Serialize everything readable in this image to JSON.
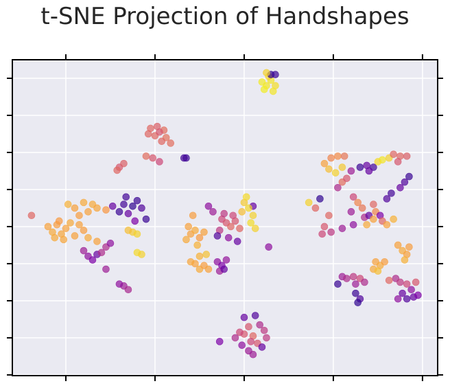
{
  "chart_data": {
    "type": "scatter",
    "title": "t-SNE Projection of Handshapes",
    "xlabel": "",
    "ylabel": "",
    "xlim": [
      -52,
      43.4
    ],
    "ylim": [
      -40.2,
      45
    ],
    "xticks": [
      -40,
      -20,
      0,
      20,
      40
    ],
    "yticks": [
      -40,
      -30,
      -20,
      -10,
      0,
      10,
      20,
      30,
      40
    ],
    "tick_labels_shown": false,
    "grid": true,
    "background": "#eaeaf2",
    "colormap": "plasma",
    "colormap_stops": [
      "#0d0887",
      "#7e03a8",
      "#cc4778",
      "#f89540",
      "#f0f921"
    ],
    "marker_alpha": 0.7,
    "legend": "none",
    "points": [
      [
        5,
        38,
        0.95
      ],
      [
        6,
        39.5,
        0.95
      ],
      [
        4.5,
        37,
        0.97
      ],
      [
        7,
        38,
        0.93
      ],
      [
        5.5,
        40.5,
        0.9
      ],
      [
        4,
        39,
        0.96
      ],
      [
        6.5,
        36.5,
        0.95
      ],
      [
        6,
        41,
        0.08
      ],
      [
        7,
        41,
        0.1
      ],
      [
        5,
        41.5,
        0.9
      ],
      [
        -21,
        26.5,
        0.6
      ],
      [
        -19.5,
        27,
        0.58
      ],
      [
        -18,
        26,
        0.62
      ],
      [
        -20,
        24.5,
        0.6
      ],
      [
        -17.5,
        24,
        0.63
      ],
      [
        -18.5,
        23,
        0.6
      ],
      [
        -16.5,
        22.5,
        0.62
      ],
      [
        -19,
        25.5,
        0.55
      ],
      [
        -21.5,
        25,
        0.6
      ],
      [
        -22,
        19,
        0.62
      ],
      [
        -20.5,
        18.5,
        0.55
      ],
      [
        -19,
        17.5,
        0.5
      ],
      [
        -13,
        18.5,
        0.1
      ],
      [
        -13.5,
        18.5,
        0.12
      ],
      [
        -28,
        16,
        0.55
      ],
      [
        -27,
        17,
        0.58
      ],
      [
        -28.5,
        15.2,
        0.6
      ],
      [
        -47.7,
        3,
        0.6
      ],
      [
        -44,
        0,
        0.78
      ],
      [
        -43,
        -1.5,
        0.8
      ],
      [
        -42,
        0.5,
        0.77
      ],
      [
        -41,
        -2,
        0.79
      ],
      [
        -40,
        -0.5,
        0.78
      ],
      [
        -39,
        1,
        0.8
      ],
      [
        -41.5,
        1.5,
        0.76
      ],
      [
        -38,
        -2.5,
        0.78
      ],
      [
        -42.5,
        -3,
        0.8
      ],
      [
        -37,
        0.5,
        0.78
      ],
      [
        -40.5,
        -3.5,
        0.79
      ],
      [
        -36,
        -1,
        0.77
      ],
      [
        -38,
        5,
        0.78
      ],
      [
        -36,
        6.5,
        0.8
      ],
      [
        -35,
        4,
        0.78
      ],
      [
        -34,
        6,
        0.8
      ],
      [
        -37,
        3,
        0.77
      ],
      [
        -33,
        5,
        0.79
      ],
      [
        -39.5,
        6,
        0.82
      ],
      [
        -35,
        -3,
        0.8
      ],
      [
        -33,
        -4,
        0.78
      ],
      [
        -31,
        4.5,
        0.75
      ],
      [
        -27,
        6,
        0.12
      ],
      [
        -25,
        5.5,
        0.08
      ],
      [
        -24,
        7,
        0.1
      ],
      [
        -23,
        5,
        0.15
      ],
      [
        -26,
        3.5,
        0.2
      ],
      [
        -28,
        4,
        0.1
      ],
      [
        -22,
        2,
        0.1
      ],
      [
        -29.5,
        5.5,
        0.2
      ],
      [
        -26.5,
        8,
        0.12
      ],
      [
        -24.5,
        1.5,
        0.25
      ],
      [
        -35,
        -8,
        0.3
      ],
      [
        -34,
        -9,
        0.25
      ],
      [
        -33,
        -7.5,
        0.2
      ],
      [
        -36,
        -6.5,
        0.35
      ],
      [
        -32,
        -7,
        0.4
      ],
      [
        -31,
        -5.5,
        0.4
      ],
      [
        -30,
        -4.5,
        0.3
      ],
      [
        -27,
        -16,
        0.35
      ],
      [
        -28,
        -15.5,
        0.3
      ],
      [
        -26,
        -17,
        0.38
      ],
      [
        -31,
        -11.5,
        0.35
      ],
      [
        -25,
        -1.5,
        0.88
      ],
      [
        -24,
        -2,
        0.9
      ],
      [
        -26,
        -1,
        0.85
      ],
      [
        -24,
        -7,
        0.92
      ],
      [
        -23,
        -7.5,
        0.9
      ],
      [
        -12,
        -2,
        0.78
      ],
      [
        -11,
        -1,
        0.8
      ],
      [
        -10,
        -3,
        0.76
      ],
      [
        -12.5,
        0,
        0.78
      ],
      [
        -13,
        -3.5,
        0.8
      ],
      [
        -11.5,
        3,
        0.77
      ],
      [
        -9,
        -1.5,
        0.78
      ],
      [
        -10.5,
        -5,
        0.82
      ],
      [
        -11,
        -10,
        0.78
      ],
      [
        -10,
        -11.5,
        0.8
      ],
      [
        -9,
        -10.5,
        0.77
      ],
      [
        -12,
        -9.5,
        0.79
      ],
      [
        -8,
        -11.5,
        0.78
      ],
      [
        -10,
        -8,
        0.82
      ],
      [
        -8.5,
        -7.5,
        0.86
      ],
      [
        -8,
        5.5,
        0.3
      ],
      [
        -7,
        4,
        0.35
      ],
      [
        -5,
        2,
        0.5
      ],
      [
        -4,
        1,
        0.55
      ],
      [
        -3,
        0,
        0.6
      ],
      [
        -2,
        1.5,
        0.55
      ],
      [
        -1,
        -0.5,
        0.6
      ],
      [
        -5.5,
        -1,
        0.45
      ],
      [
        -3.5,
        -3,
        0.3
      ],
      [
        -1.5,
        -4,
        0.2
      ],
      [
        -6,
        -2.5,
        0.15
      ],
      [
        -2.5,
        3,
        0.5
      ],
      [
        -4.5,
        3.5,
        0.45
      ],
      [
        2,
        5.5,
        0.2
      ],
      [
        0,
        6.5,
        0.88
      ],
      [
        1,
        5,
        0.92
      ],
      [
        2,
        3,
        0.9
      ],
      [
        1.5,
        1,
        0.93
      ],
      [
        -0.5,
        4,
        0.85
      ],
      [
        2.5,
        -0.5,
        0.9
      ],
      [
        0.5,
        8,
        0.92
      ],
      [
        -6,
        -9.5,
        0.3
      ],
      [
        -5,
        -10.5,
        0.25
      ],
      [
        -4,
        -9,
        0.32
      ],
      [
        -5.5,
        -12,
        0.35
      ],
      [
        -4.5,
        -11.5,
        0.2
      ],
      [
        5.5,
        -5.5,
        0.3
      ],
      [
        0,
        -24.5,
        0.2
      ],
      [
        2.5,
        -24,
        0.15
      ],
      [
        3.5,
        -26.5,
        0.4
      ],
      [
        1,
        -27,
        0.55
      ],
      [
        0,
        -29,
        0.55
      ],
      [
        2,
        -29.5,
        0.6
      ],
      [
        1.5,
        -31,
        0.5
      ],
      [
        3,
        -31.5,
        0.55
      ],
      [
        4.5,
        -28,
        0.45
      ],
      [
        -1,
        -28.5,
        0.5
      ],
      [
        -2,
        -30,
        0.4
      ],
      [
        1,
        -33.5,
        0.35
      ],
      [
        2,
        -34.5,
        0.35
      ],
      [
        4,
        -32.5,
        0.2
      ],
      [
        -0.5,
        -32,
        0.3
      ],
      [
        5,
        -30,
        0.45
      ],
      [
        -5.5,
        -31,
        0.25
      ],
      [
        18,
        17,
        0.78
      ],
      [
        19.5,
        18.5,
        0.7
      ],
      [
        21,
        19,
        0.72
      ],
      [
        22.5,
        19,
        0.65
      ],
      [
        19,
        15.5,
        0.85
      ],
      [
        20.5,
        14.5,
        0.9
      ],
      [
        22,
        16,
        0.88
      ],
      [
        24,
        15,
        0.35
      ],
      [
        26,
        16,
        0.1
      ],
      [
        27.5,
        16.5,
        0.2
      ],
      [
        29,
        16,
        0.12
      ],
      [
        28,
        15,
        0.2
      ],
      [
        30,
        17.5,
        0.92
      ],
      [
        31,
        18,
        0.95
      ],
      [
        32.5,
        18.5,
        0.9
      ],
      [
        33.5,
        19.5,
        0.6
      ],
      [
        35,
        19,
        0.6
      ],
      [
        36.5,
        19,
        0.58
      ],
      [
        34.5,
        17.5,
        0.55
      ],
      [
        36,
        12,
        0.15
      ],
      [
        35,
        10.5,
        0.2
      ],
      [
        33,
        9,
        0.12
      ],
      [
        32,
        7.5,
        0.15
      ],
      [
        37,
        13.5,
        0.1
      ],
      [
        22,
        12,
        0.62
      ],
      [
        23,
        13,
        0.55
      ],
      [
        21,
        10.5,
        0.4
      ],
      [
        24.5,
        8,
        0.5
      ],
      [
        25.5,
        6.5,
        0.7
      ],
      [
        26.5,
        5,
        0.65
      ],
      [
        24,
        4,
        0.35
      ],
      [
        27,
        2.5,
        0.4
      ],
      [
        29,
        6,
        0.6
      ],
      [
        29.5,
        4,
        0.7
      ],
      [
        28,
        3,
        0.2
      ],
      [
        30.5,
        3,
        0.25
      ],
      [
        31,
        1.5,
        0.6
      ],
      [
        29,
        2,
        0.78
      ],
      [
        27.5,
        0.5,
        0.8
      ],
      [
        32,
        0.5,
        0.78
      ],
      [
        33.5,
        2,
        0.82
      ],
      [
        24.5,
        0.5,
        0.3
      ],
      [
        22,
        -0.5,
        0.35
      ],
      [
        19,
        3,
        0.6
      ],
      [
        18,
        0,
        0.55
      ],
      [
        17.5,
        -2,
        0.5
      ],
      [
        19.5,
        -1.5,
        0.45
      ],
      [
        16,
        5,
        0.6
      ],
      [
        14.5,
        6.5,
        0.9
      ],
      [
        17,
        7.5,
        0.08
      ],
      [
        34.5,
        -5,
        0.78
      ],
      [
        35.5,
        -6.5,
        0.8
      ],
      [
        36.5,
        -7.5,
        0.78
      ],
      [
        37,
        -5.5,
        0.77
      ],
      [
        36,
        -9,
        0.82
      ],
      [
        29.5,
        -9.5,
        0.78
      ],
      [
        30.5,
        -10.5,
        0.8
      ],
      [
        31.5,
        -9.5,
        0.77
      ],
      [
        29,
        -11.5,
        0.8
      ],
      [
        30,
        -12,
        0.85
      ],
      [
        22,
        -13.5,
        0.35
      ],
      [
        23,
        -14,
        0.4
      ],
      [
        24.5,
        -13.5,
        0.45
      ],
      [
        26,
        -14,
        0.5
      ],
      [
        25,
        -15.5,
        0.35
      ],
      [
        27,
        -15,
        0.4
      ],
      [
        21,
        -15.5,
        0.1
      ],
      [
        25,
        -18,
        0.1
      ],
      [
        26,
        -19.5,
        0.15
      ],
      [
        25.5,
        -20.5,
        0.08
      ],
      [
        34,
        -14,
        0.4
      ],
      [
        35,
        -15,
        0.45
      ],
      [
        36.5,
        -15.5,
        0.5
      ],
      [
        35.5,
        -18,
        0.2
      ],
      [
        36.5,
        -19.5,
        0.15
      ],
      [
        38,
        -19,
        0.2
      ],
      [
        37.5,
        -17,
        0.3
      ],
      [
        34.5,
        -19.5,
        0.3
      ],
      [
        32.5,
        -14.5,
        0.6
      ],
      [
        38.5,
        -15,
        0.55
      ],
      [
        39,
        -18.5,
        0.25
      ]
    ]
  }
}
